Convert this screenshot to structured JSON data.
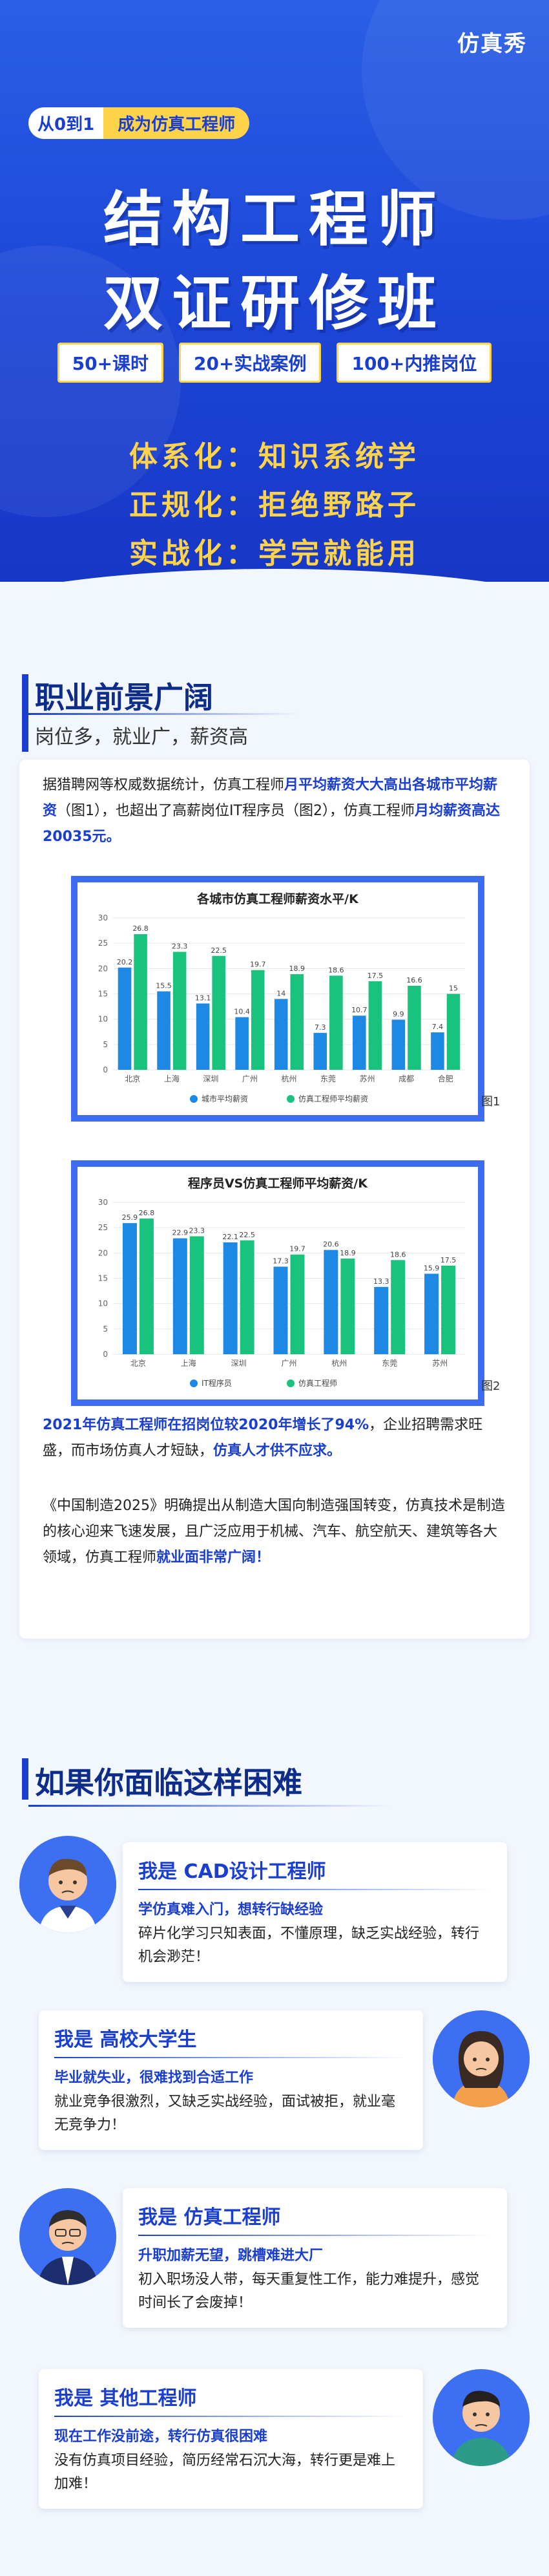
{
  "hero": {
    "brand": "仿真秀",
    "pill_a": "从0到1",
    "pill_b": "成为仿真工程师",
    "title_line1": "结构工程师",
    "title_line2": "双证研修班",
    "tags": [
      "50+课时",
      "20+实战案例",
      "100+内推岗位"
    ],
    "slogans": [
      "体系化：知识系统学",
      "正规化：拒绝野路子",
      "实战化：学完就能用"
    ]
  },
  "career": {
    "title": "职业前景广阔",
    "subtitle": "岗位多，就业广，薪资高",
    "para1_parts": [
      "据猎聘网等权威数据统计，仿真工程师",
      "月平均薪资大大高出各城市平均薪资",
      "（图1），也超出了高薪岗位IT程序员（图2），仿真工程师",
      "月均薪资高达20035元。"
    ],
    "para2_parts": [
      "2021年仿真工程师在招岗位较2020年增长了94%",
      "，企业招聘需求旺盛，而市场仿真人才短缺，",
      "仿真人才供不应求。"
    ],
    "para3_parts": [
      "《中国制造2025》明确提出从制造大国向制造强国转变，仿真技术是制造的核心迎来飞速发展，且广泛应用于机械、汽车、航空航天、建筑等各大领域，仿真工程师",
      "就业面非常广阔！"
    ],
    "fig1_label": "图1",
    "fig2_label": "图2"
  },
  "chart_data": [
    {
      "type": "bar",
      "title": "各城市仿真工程师薪资水平/K",
      "categories": [
        "北京",
        "上海",
        "深圳",
        "广州",
        "杭州",
        "东莞",
        "苏州",
        "成都",
        "合肥"
      ],
      "series": [
        {
          "name": "城市平均薪资",
          "values": [
            20.2,
            15.5,
            13.1,
            10.4,
            14,
            7.3,
            10.7,
            9.9,
            7.4
          ],
          "color": "#1e88e5"
        },
        {
          "name": "仿真工程师平均薪资",
          "values": [
            26.8,
            23.3,
            22.5,
            19.7,
            18.9,
            18.6,
            17.5,
            16.6,
            15
          ],
          "color": "#19c37d"
        }
      ],
      "ylim": [
        0,
        30
      ],
      "yticks": [
        0,
        5,
        10,
        15,
        20,
        25,
        30
      ],
      "grid": true,
      "legend": "bottom"
    },
    {
      "type": "bar",
      "title": "程序员VS仿真工程师平均薪资/K",
      "categories": [
        "北京",
        "上海",
        "深圳",
        "广州",
        "杭州",
        "东莞",
        "苏州"
      ],
      "series": [
        {
          "name": "IT程序员",
          "values": [
            25.9,
            22.9,
            22.1,
            17.3,
            20.6,
            13.3,
            15.9
          ],
          "color": "#1e88e5"
        },
        {
          "name": "仿真工程师",
          "values": [
            26.8,
            23.3,
            22.5,
            19.7,
            18.9,
            18.6,
            17.5
          ],
          "color": "#19c37d"
        }
      ],
      "ylim": [
        0,
        30
      ],
      "yticks": [
        0,
        5,
        10,
        15,
        20,
        25,
        30
      ],
      "grid": true,
      "legend": "bottom"
    }
  ],
  "difficulty": {
    "title": "如果你面临这样困难",
    "cards": [
      {
        "who_prefix": "我是 ",
        "who": "CAD设计工程师",
        "pain": "学仿真难入门，想转行缺经验",
        "desc": "碎片化学习只知表面，不懂原理，缺乏实战经验，转行机会渺茫！"
      },
      {
        "who_prefix": "我是 ",
        "who": "高校大学生",
        "pain": "毕业就失业，很难找到合适工作",
        "desc": "就业竞争很激烈，又缺乏实战经验，面试被拒，就业毫无竞争力！"
      },
      {
        "who_prefix": "我是 ",
        "who": "仿真工程师",
        "pain": "升职加薪无望，跳槽难进大厂",
        "desc": "初入职场没人带，每天重复性工作，能力难提升，感觉时间长了会废掉！"
      },
      {
        "who_prefix": "我是 ",
        "who": "其他工程师",
        "pain": "现在工作没前途，转行仿真很困难",
        "desc": "没有仿真项目经验，简历经常石沉大海，转行更是难上加难！"
      }
    ]
  }
}
